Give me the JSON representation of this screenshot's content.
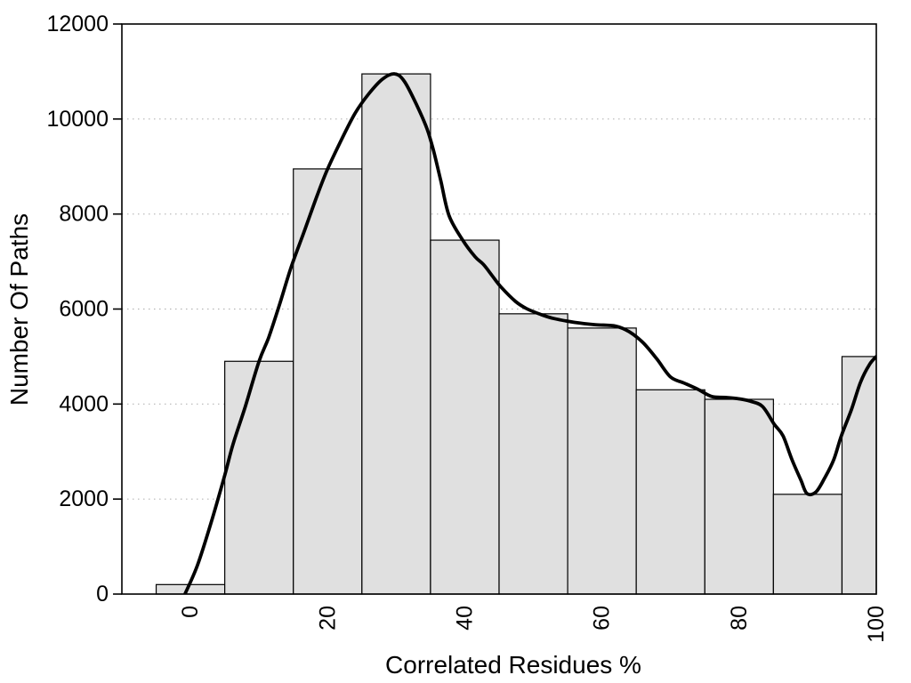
{
  "chart_data": {
    "type": "bar",
    "subtype": "histogram_with_density_curve",
    "title": "",
    "xlabel": "Correlated Residues %",
    "ylabel": "Number Of Paths",
    "xlim": [
      -10,
      100
    ],
    "ylim": [
      0,
      12000
    ],
    "x_ticks": [
      0,
      20,
      40,
      60,
      80,
      100
    ],
    "y_ticks": [
      0,
      2000,
      4000,
      6000,
      8000,
      10000,
      12000
    ],
    "grid": {
      "horizontal_dotted": true,
      "color": "#b5b5b5"
    },
    "legend_position": "none",
    "bars": {
      "bin_width": 10,
      "centers": [
        0,
        10,
        20,
        30,
        40,
        50,
        60,
        70,
        80,
        90,
        100
      ],
      "values": [
        200,
        4900,
        8950,
        10950,
        7450,
        5900,
        5600,
        4300,
        4100,
        2100,
        5000
      ],
      "fill": "#e0e0e0",
      "edge_color": "#000000"
    },
    "curve": {
      "color": "#000000",
      "points": [
        [
          -0.8,
          0
        ],
        [
          1,
          600
        ],
        [
          3,
          1500
        ],
        [
          5,
          2500
        ],
        [
          6.2,
          3150
        ],
        [
          8,
          3950
        ],
        [
          10,
          4900
        ],
        [
          11.4,
          5400
        ],
        [
          13,
          6100
        ],
        [
          14.7,
          6890
        ],
        [
          16.5,
          7600
        ],
        [
          18.5,
          8400
        ],
        [
          20,
          8950
        ],
        [
          22,
          9560
        ],
        [
          24,
          10120
        ],
        [
          26,
          10530
        ],
        [
          28,
          10840
        ],
        [
          29.8,
          10950
        ],
        [
          31.2,
          10790
        ],
        [
          33,
          10290
        ],
        [
          34.5,
          9790
        ],
        [
          35.5,
          9300
        ],
        [
          36.5,
          8700
        ],
        [
          37.7,
          7970
        ],
        [
          39.7,
          7450
        ],
        [
          41.5,
          7100
        ],
        [
          42.7,
          6940
        ],
        [
          44,
          6700
        ],
        [
          45.3,
          6460
        ],
        [
          47.4,
          6160
        ],
        [
          49,
          6010
        ],
        [
          51,
          5890
        ],
        [
          53,
          5800
        ],
        [
          56,
          5720
        ],
        [
          59,
          5670
        ],
        [
          62,
          5640
        ],
        [
          64,
          5520
        ],
        [
          66,
          5290
        ],
        [
          68,
          4950
        ],
        [
          70,
          4570
        ],
        [
          72,
          4440
        ],
        [
          74,
          4310
        ],
        [
          76,
          4160
        ],
        [
          78,
          4140
        ],
        [
          80,
          4110
        ],
        [
          81.6,
          4060
        ],
        [
          83.4,
          3950
        ],
        [
          85.1,
          3580
        ],
        [
          86.4,
          3330
        ],
        [
          87.7,
          2830
        ],
        [
          89,
          2400
        ],
        [
          89.9,
          2115
        ],
        [
          91.2,
          2150
        ],
        [
          92.5,
          2450
        ],
        [
          93.8,
          2830
        ],
        [
          94.9,
          3330
        ],
        [
          96.4,
          3890
        ],
        [
          97.7,
          4460
        ],
        [
          99,
          4830
        ],
        [
          100,
          5000
        ]
      ]
    }
  }
}
